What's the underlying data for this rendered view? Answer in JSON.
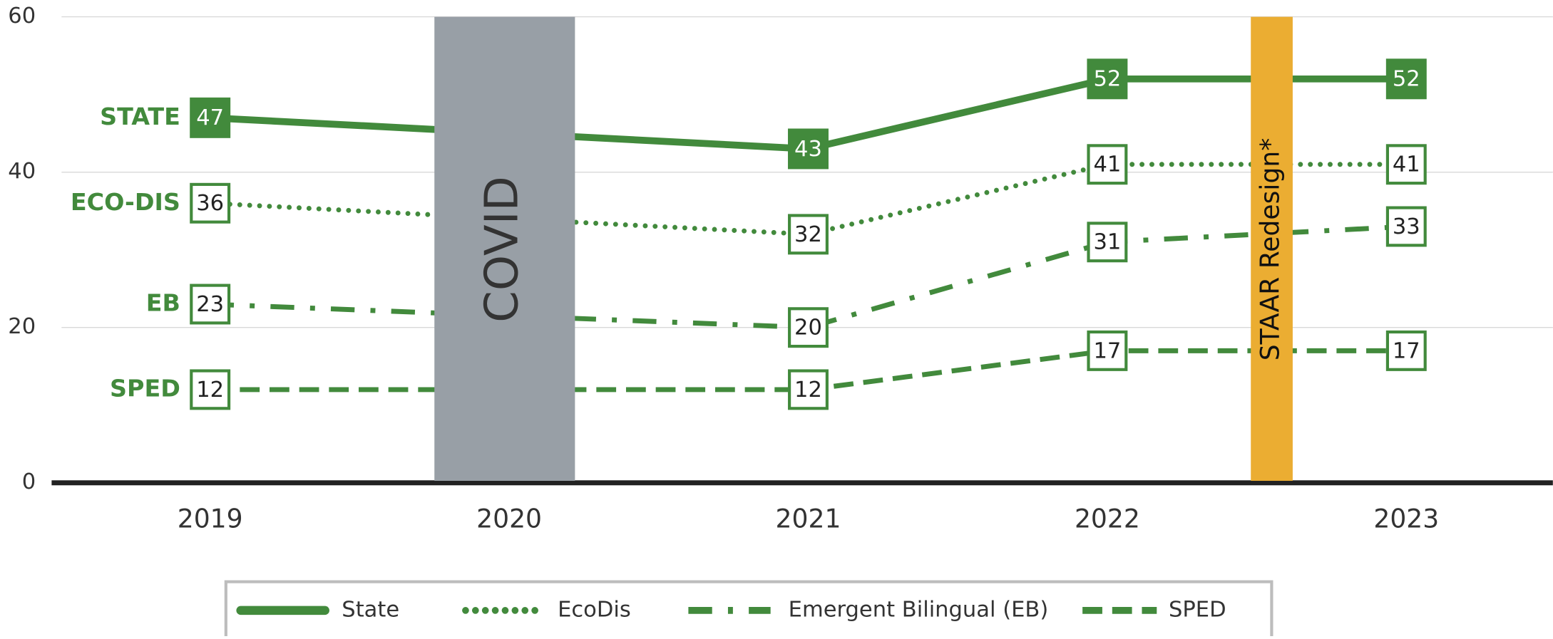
{
  "chart_data": {
    "type": "line",
    "xticks": [
      2019,
      2020,
      2021,
      2022,
      2023
    ],
    "xlim": [
      2018.47,
      2023.49
    ],
    "ylim": [
      0,
      60
    ],
    "yticks": [
      0,
      20,
      40,
      60
    ],
    "grid": true,
    "legend": "bottom",
    "series": [
      {
        "name": "State",
        "label": "STATE",
        "color": "#428a3c",
        "style": "solid",
        "marker": "filled",
        "x": [
          2019,
          2021,
          2022,
          2023
        ],
        "values": [
          47,
          43,
          52,
          52
        ]
      },
      {
        "name": "EcoDis",
        "label": "ECO-DIS",
        "color": "#428a3c",
        "style": "dotted",
        "marker": "open",
        "x": [
          2019,
          2021,
          2022,
          2023
        ],
        "values": [
          36,
          32,
          41,
          41
        ]
      },
      {
        "name": "Emergent Bilingual (EB)",
        "label": "EB",
        "color": "#428a3c",
        "style": "dashdot",
        "marker": "open",
        "x": [
          2019,
          2021,
          2022,
          2023
        ],
        "values": [
          23,
          20,
          31,
          33
        ]
      },
      {
        "name": "SPED",
        "label": "SPED",
        "color": "#428a3c",
        "style": "dashed",
        "marker": "open",
        "x": [
          2019,
          2021,
          2022,
          2023
        ],
        "values": [
          12,
          12,
          17,
          17
        ]
      }
    ],
    "annotations": [
      {
        "text": "COVID",
        "x0": 2019.75,
        "x1": 2020.22,
        "color": "#989fa6"
      },
      {
        "text": "STAAR Redesign*",
        "x0": 2022.48,
        "x1": 2022.62,
        "color": "#ebad32"
      }
    ]
  }
}
